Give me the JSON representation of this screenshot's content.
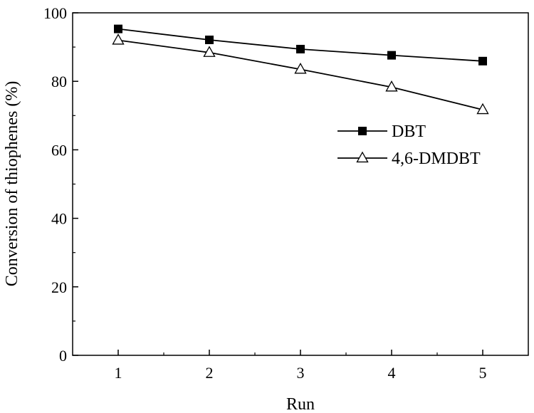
{
  "chart_data": {
    "type": "line",
    "title": "",
    "xlabel": "Run",
    "ylabel": "Conversion of thiophenes (%)",
    "x": [
      1,
      2,
      3,
      4,
      5
    ],
    "xlim": [
      0.5,
      5.5
    ],
    "ylim": [
      0,
      100
    ],
    "xticks": [
      "1",
      "2",
      "3",
      "4",
      "5"
    ],
    "yticks": [
      "0",
      "20",
      "40",
      "60",
      "80",
      "100"
    ],
    "grid": false,
    "legend_position": "center-right",
    "series": [
      {
        "name": "DBT",
        "marker": "filled-square",
        "values": [
          95.3,
          92.1,
          89.4,
          87.6,
          85.9
        ]
      },
      {
        "name": "4,6-DMDBT",
        "marker": "open-triangle",
        "values": [
          92.0,
          88.4,
          83.5,
          78.3,
          71.7
        ]
      }
    ]
  }
}
